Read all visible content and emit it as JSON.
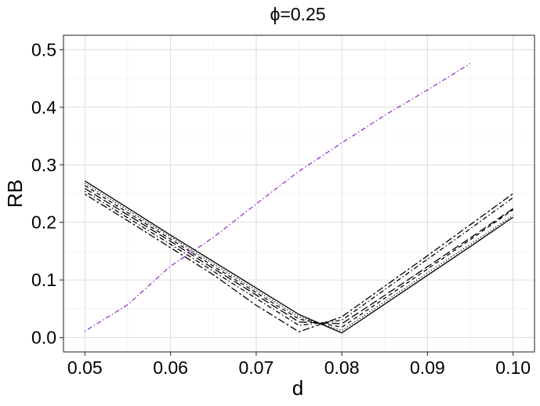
{
  "chart_data": {
    "type": "line",
    "title": "ϕ=0.25",
    "xlabel": "d",
    "ylabel": "RB",
    "xlim": [
      0.0475,
      0.1025
    ],
    "ylim": [
      -0.025,
      0.525
    ],
    "x_ticks": [
      0.05,
      0.06,
      0.07,
      0.08,
      0.09,
      0.1
    ],
    "x_tick_labels": [
      "0.05",
      "0.06",
      "0.07",
      "0.08",
      "0.09",
      "0.10"
    ],
    "y_ticks": [
      0.0,
      0.1,
      0.2,
      0.3,
      0.4,
      0.5
    ],
    "y_tick_labels": [
      "0.0",
      "0.1",
      "0.2",
      "0.3",
      "0.4",
      "0.5"
    ],
    "grid": true,
    "legend": "none",
    "colors": {
      "black_series": "#000000",
      "purple_series": "#9932CC",
      "grid_major": "#d9d9d9",
      "grid_minor": "#ededed",
      "panel_border": "#333333"
    },
    "series": [
      {
        "x": [
          0.05,
          0.055,
          0.06,
          0.065,
          0.07,
          0.075,
          0.08,
          0.085,
          0.09,
          0.095,
          0.1
        ],
        "y": [
          0.272,
          0.225,
          0.178,
          0.132,
          0.086,
          0.04,
          0.008,
          0.058,
          0.108,
          0.158,
          0.209
        ],
        "dash": "solid",
        "color": "#000000"
      },
      {
        "x": [
          0.05,
          0.055,
          0.06,
          0.065,
          0.07,
          0.075,
          0.08,
          0.085,
          0.09,
          0.095,
          0.1
        ],
        "y": [
          0.268,
          0.221,
          0.175,
          0.128,
          0.082,
          0.036,
          0.012,
          0.062,
          0.112,
          0.162,
          0.212
        ],
        "dash": "dotted",
        "color": "#000000"
      },
      {
        "x": [
          0.05,
          0.055,
          0.06,
          0.065,
          0.07,
          0.075,
          0.08,
          0.085,
          0.09,
          0.095,
          0.1
        ],
        "y": [
          0.264,
          0.217,
          0.171,
          0.124,
          0.078,
          0.032,
          0.018,
          0.068,
          0.119,
          0.17,
          0.222
        ],
        "dash": "dashed",
        "color": "#000000"
      },
      {
        "x": [
          0.05,
          0.055,
          0.06,
          0.065,
          0.07,
          0.075,
          0.08,
          0.085,
          0.09,
          0.095,
          0.1
        ],
        "y": [
          0.259,
          0.213,
          0.167,
          0.12,
          0.074,
          0.027,
          0.024,
          0.073,
          0.123,
          0.173,
          0.224
        ],
        "dash": "longdash",
        "color": "#000000"
      },
      {
        "x": [
          0.05,
          0.055,
          0.06,
          0.065,
          0.07,
          0.075,
          0.08,
          0.085,
          0.09,
          0.095,
          0.1
        ],
        "y": [
          0.254,
          0.208,
          0.162,
          0.115,
          0.068,
          0.021,
          0.03,
          0.083,
          0.136,
          0.189,
          0.243
        ],
        "dash": "dotdash",
        "color": "#000000"
      },
      {
        "x": [
          0.05,
          0.055,
          0.06,
          0.065,
          0.07,
          0.075,
          0.08,
          0.085,
          0.09,
          0.095,
          0.1
        ],
        "y": [
          0.249,
          0.203,
          0.156,
          0.109,
          0.056,
          0.01,
          0.036,
          0.089,
          0.142,
          0.196,
          0.25
        ],
        "dash": "twodash",
        "color": "#000000"
      },
      {
        "x": [
          0.05,
          0.055,
          0.06,
          0.065,
          0.07,
          0.075,
          0.08,
          0.085,
          0.09,
          0.095
        ],
        "y": [
          0.011,
          0.057,
          0.124,
          0.174,
          0.232,
          0.289,
          0.338,
          0.386,
          0.43,
          0.476
        ],
        "dash": "dotdash",
        "color": "#9932CC"
      }
    ]
  }
}
